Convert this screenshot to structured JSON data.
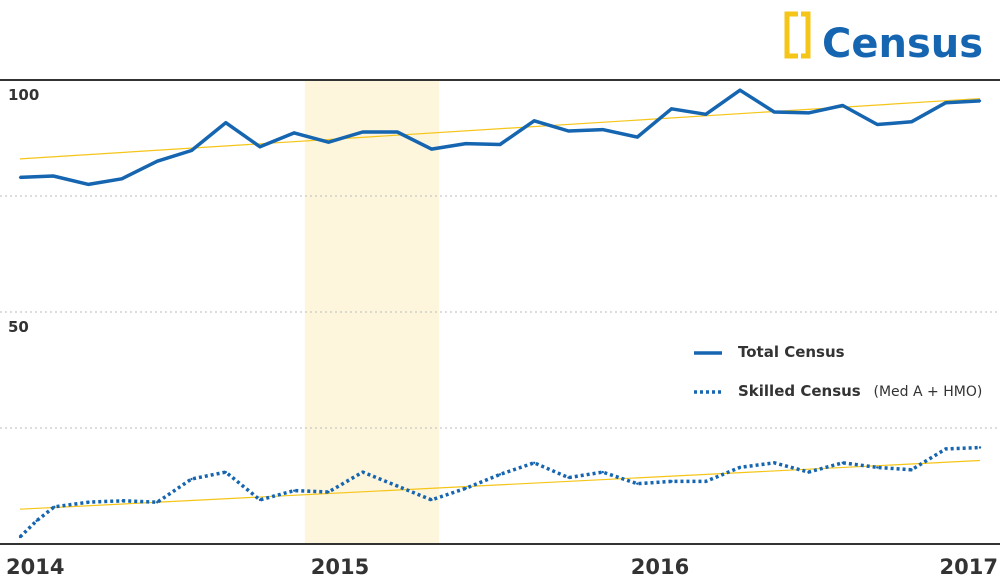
{
  "chart_data": {
    "type": "line",
    "title": "Census",
    "icon": "bracket-icon",
    "colors": {
      "primary": "#1565b0",
      "accent": "#f5c518",
      "highlight": "#fdf5dc",
      "grid": "#bbbbbb",
      "axis": "#333333"
    },
    "ylim": [
      0,
      100
    ],
    "y_ticks": [
      {
        "value": 100,
        "label": "100"
      },
      {
        "value": 50,
        "label": "50"
      }
    ],
    "xlim": [
      2014,
      2017
    ],
    "x_ticks": [
      "2014",
      "2015",
      "2016",
      "2017"
    ],
    "x_tick_values": [
      2014,
      2015,
      2016,
      2017
    ],
    "highlight_band": [
      2014.89,
      2015.31
    ],
    "series": [
      {
        "name": "Total Census",
        "style": "solid",
        "x": [
          2014.0,
          2014.104,
          2014.214,
          2014.318,
          2014.429,
          2014.536,
          2014.643,
          2014.75,
          2014.857,
          2014.964,
          2015.071,
          2015.179,
          2015.286,
          2015.393,
          2015.5,
          2015.607,
          2015.714,
          2015.821,
          2015.929,
          2016.036,
          2016.143,
          2016.25,
          2016.357,
          2016.464,
          2016.571,
          2016.679,
          2016.786,
          2016.893,
          2017.0
        ],
        "values": [
          79.0,
          79.3,
          77.5,
          78.7,
          82.5,
          84.8,
          90.8,
          85.6,
          88.6,
          86.6,
          88.8,
          88.8,
          85.1,
          86.3,
          86.1,
          91.2,
          89.0,
          89.3,
          87.7,
          93.8,
          92.6,
          97.8,
          93.1,
          92.9,
          94.5,
          90.4,
          91.0,
          95.1,
          95.5
        ]
      },
      {
        "name": "Skilled Census",
        "name_note": "(Med A + HMO)",
        "style": "dotted",
        "x": [
          2014.0,
          2014.052,
          2014.107,
          2014.214,
          2014.321,
          2014.429,
          2014.536,
          2014.643,
          2014.75,
          2014.857,
          2014.964,
          2015.071,
          2015.179,
          2015.286,
          2015.393,
          2015.5,
          2015.607,
          2015.714,
          2015.821,
          2015.929,
          2016.036,
          2016.143,
          2016.25,
          2016.357,
          2016.464,
          2016.571,
          2016.679,
          2016.786,
          2016.893,
          2017.0
        ],
        "values": [
          1.5,
          5.0,
          8.0,
          9.0,
          9.3,
          9.0,
          14.0,
          15.5,
          9.5,
          11.5,
          11.2,
          15.5,
          12.5,
          9.5,
          12.0,
          15.0,
          17.5,
          14.3,
          15.5,
          13.0,
          13.5,
          13.5,
          16.5,
          17.5,
          15.5,
          17.5,
          16.5,
          16.0,
          20.5,
          20.8
        ]
      }
    ],
    "trendlines": [
      {
        "series": "Total Census",
        "values": [
          83.0,
          96.0
        ]
      },
      {
        "series": "Skilled Census",
        "values": [
          7.5,
          18.0
        ]
      }
    ],
    "legend": {
      "position": "right",
      "items": [
        {
          "label": "Total Census",
          "note": "",
          "style": "solid"
        },
        {
          "label": "Skilled Census",
          "note": "(Med A + HMO)",
          "style": "dotted"
        }
      ]
    },
    "grid": "dotted horizontal"
  }
}
